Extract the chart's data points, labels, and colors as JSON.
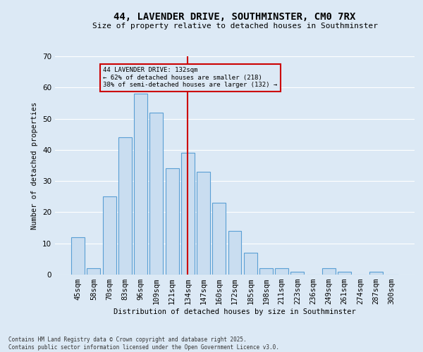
{
  "title": "44, LAVENDER DRIVE, SOUTHMINSTER, CM0 7RX",
  "subtitle": "Size of property relative to detached houses in Southminster",
  "xlabel": "Distribution of detached houses by size in Southminster",
  "ylabel": "Number of detached properties",
  "bar_labels": [
    "45sqm",
    "58sqm",
    "70sqm",
    "83sqm",
    "96sqm",
    "109sqm",
    "121sqm",
    "134sqm",
    "147sqm",
    "160sqm",
    "172sqm",
    "185sqm",
    "198sqm",
    "211sqm",
    "223sqm",
    "236sqm",
    "249sqm",
    "261sqm",
    "274sqm",
    "287sqm",
    "300sqm"
  ],
  "bar_values": [
    12,
    2,
    25,
    44,
    58,
    52,
    34,
    39,
    33,
    23,
    14,
    7,
    2,
    2,
    1,
    0,
    2,
    1,
    0,
    1,
    0
  ],
  "bar_color": "#c9ddf0",
  "bar_edge_color": "#5a9fd4",
  "grid_color": "#ffffff",
  "bg_color": "#dce9f5",
  "vline_x": 7,
  "vline_color": "#cc0000",
  "annotation_text": "44 LAVENDER DRIVE: 132sqm\n← 62% of detached houses are smaller (218)\n38% of semi-detached houses are larger (132) →",
  "annotation_box_color": "#cc0000",
  "footer_text": "Contains HM Land Registry data © Crown copyright and database right 2025.\nContains public sector information licensed under the Open Government Licence v3.0.",
  "ylim": [
    0,
    70
  ],
  "yticks": [
    0,
    10,
    20,
    30,
    40,
    50,
    60,
    70
  ]
}
